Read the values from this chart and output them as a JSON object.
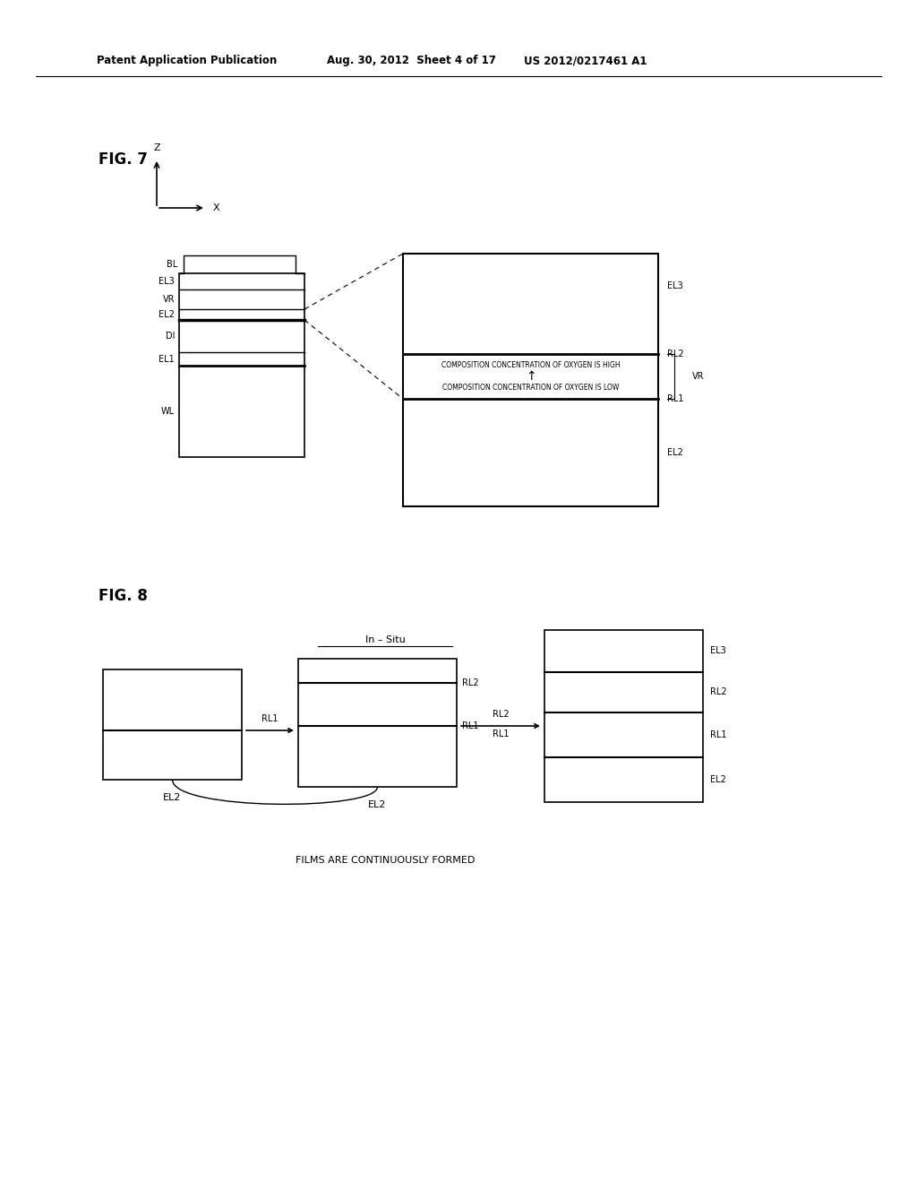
{
  "header_left": "Patent Application Publication",
  "header_mid": "Aug. 30, 2012  Sheet 4 of 17",
  "header_right": "US 2012/0217461 A1",
  "fig7_title": "FIG. 7",
  "fig8_title": "FIG. 8",
  "bg_color": "#ffffff",
  "text_color": "#000000",
  "fig7": {
    "vr_brace_label": "VR",
    "text1": "COMPOSITION CONCENTRATION OF OXYGEN IS HIGH",
    "text_arrow": "↑",
    "text2": "COMPOSITION CONCENTRATION OF OXYGEN IS LOW"
  },
  "fig8": {
    "in_situ_label": "In – Situ",
    "box1_label": "EL2",
    "box2_label": "EL2",
    "bottom_text": "FILMS ARE CONTINUOUSLY FORMED"
  }
}
